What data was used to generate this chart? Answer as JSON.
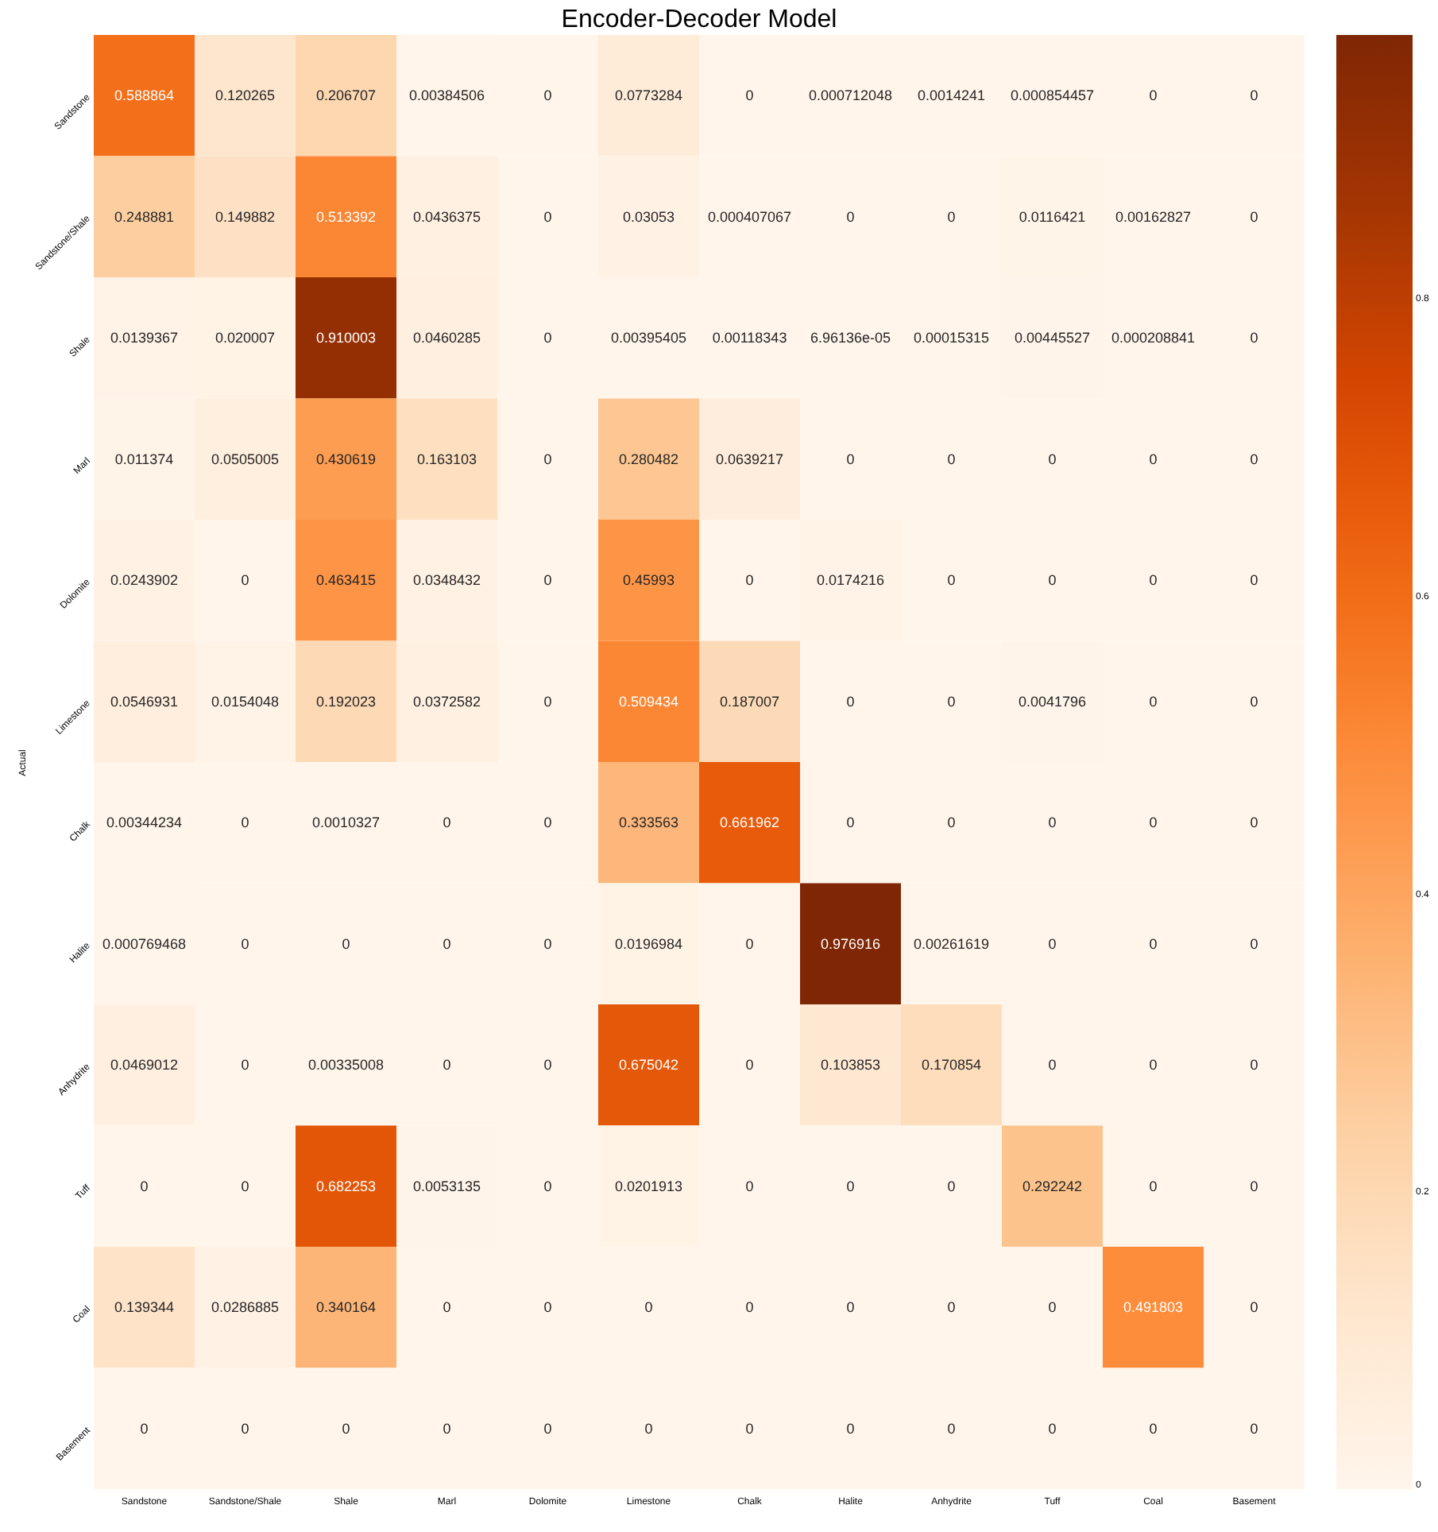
{
  "chart_data": {
    "type": "heatmap",
    "title": "Encoder-Decoder Model",
    "ylabel": "Actual",
    "categories": [
      "Sandstone",
      "Sandstone/Shale",
      "Shale",
      "Marl",
      "Dolomite",
      "Limestone",
      "Chalk",
      "Halite",
      "Anhydrite",
      "Tuff",
      "Coal",
      "Basement"
    ],
    "y_categories": [
      "Sandstone",
      "Sandstone/Shale",
      "Shale",
      "Marl",
      "Dolomite",
      "Limestone",
      "Chalk",
      "Halite",
      "Anhydrite",
      "Tuff",
      "Coal",
      "Basement"
    ],
    "cells": [
      [
        0.588864,
        0.120265,
        0.206707,
        0.00384506,
        0,
        0.0773284,
        0,
        0.000712048,
        0.0014241,
        0.000854457,
        0,
        0
      ],
      [
        0.248881,
        0.149882,
        0.513392,
        0.0436375,
        0,
        0.03053,
        0.000407067,
        0,
        0,
        0.0116421,
        0.00162827,
        0
      ],
      [
        0.0139367,
        0.020007,
        0.910003,
        0.0460285,
        0,
        0.00395405,
        0.00118343,
        6.96136e-05,
        0.00015315,
        0.00445527,
        0.000208841,
        0
      ],
      [
        0.011374,
        0.0505005,
        0.430619,
        0.163103,
        0,
        0.280482,
        0.0639217,
        0,
        0,
        0,
        0,
        0
      ],
      [
        0.0243902,
        0,
        0.463415,
        0.0348432,
        0,
        0.45993,
        0,
        0.0174216,
        0,
        0,
        0,
        0
      ],
      [
        0.0546931,
        0.0154048,
        0.192023,
        0.0372582,
        0,
        0.509434,
        0.187007,
        0,
        0,
        0.0041796,
        0,
        0
      ],
      [
        0.00344234,
        0,
        0.0010327,
        0,
        0,
        0.333563,
        0.661962,
        0,
        0,
        0,
        0,
        0
      ],
      [
        0.000769468,
        0,
        0,
        0,
        0,
        0.0196984,
        0,
        0.976916,
        0.00261619,
        0,
        0,
        0
      ],
      [
        0.0469012,
        0,
        0.00335008,
        0,
        0,
        0.675042,
        0,
        0.103853,
        0.170854,
        0,
        0,
        0
      ],
      [
        0,
        0,
        0.682253,
        0.0053135,
        0,
        0.0201913,
        0,
        0,
        0,
        0.292242,
        0,
        0
      ],
      [
        0.139344,
        0.0286885,
        0.340164,
        0,
        0,
        0,
        0,
        0,
        0,
        0,
        0.491803,
        0
      ],
      [
        0,
        0,
        0,
        0,
        0,
        0,
        0,
        0,
        0,
        0,
        0,
        0
      ]
    ],
    "clim": [
      0,
      0.976916
    ],
    "cticks": [
      0,
      0.2,
      0.4,
      0.6,
      0.8
    ],
    "data_labels": true,
    "grid": false
  }
}
